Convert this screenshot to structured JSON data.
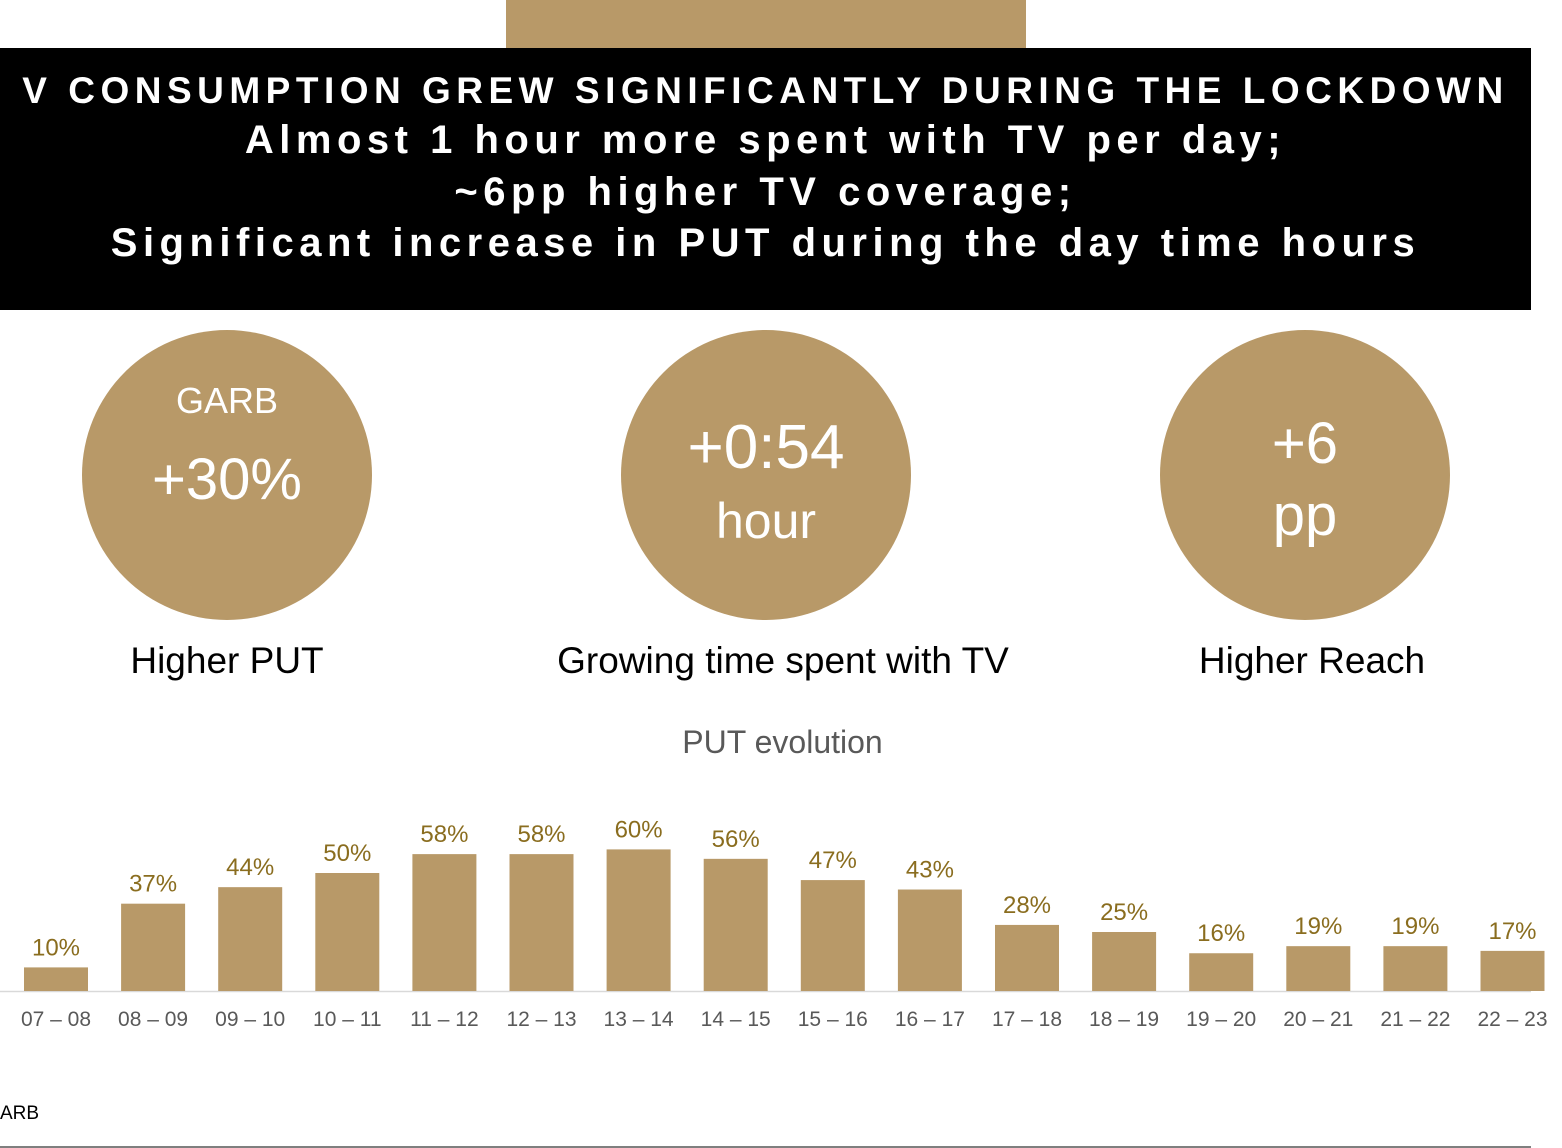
{
  "header": {
    "lines": [
      "V CONSUMPTION GREW SIGNIFICANTLY DURING THE LOCKDOWN",
      "Almost 1 hour more spent with TV per day;",
      "~6pp higher TV coverage;",
      "Significant increase in PUT during the day time hours"
    ],
    "accent_color": "#b89968",
    "background_color": "#000000"
  },
  "kpis": [
    {
      "top_label": "GARB",
      "value": "+30%",
      "caption": "Higher PUT"
    },
    {
      "value": "+0:54",
      "unit": "hour",
      "caption": "Growing time spent with TV"
    },
    {
      "value": "+6",
      "unit": "pp",
      "caption": "Higher Reach"
    }
  ],
  "chart_data": {
    "type": "bar",
    "title": "PUT evolution",
    "categories": [
      "07 – 08",
      "08 – 09",
      "09 – 10",
      "10 – 11",
      "11 – 12",
      "12 – 13",
      "13 – 14",
      "14 – 15",
      "15 – 16",
      "16 – 17",
      "17 – 18",
      "18 – 19",
      "19 – 20",
      "20 – 21",
      "21 – 22",
      "22 – 23"
    ],
    "values": [
      10,
      37,
      44,
      50,
      58,
      58,
      60,
      56,
      47,
      43,
      28,
      25,
      16,
      19,
      19,
      17
    ],
    "data_labels": [
      "10%",
      "37%",
      "44%",
      "50%",
      "58%",
      "58%",
      "60%",
      "56%",
      "47%",
      "43%",
      "28%",
      "25%",
      "16%",
      "19%",
      "19%",
      "17%"
    ],
    "xlabel": "",
    "ylabel": "",
    "ylim": [
      0,
      60
    ],
    "grid": false,
    "bar_color": "#b89968",
    "label_color": "#8a6d1f",
    "tick_color": "#595959"
  },
  "footer": {
    "source": "ARB"
  }
}
